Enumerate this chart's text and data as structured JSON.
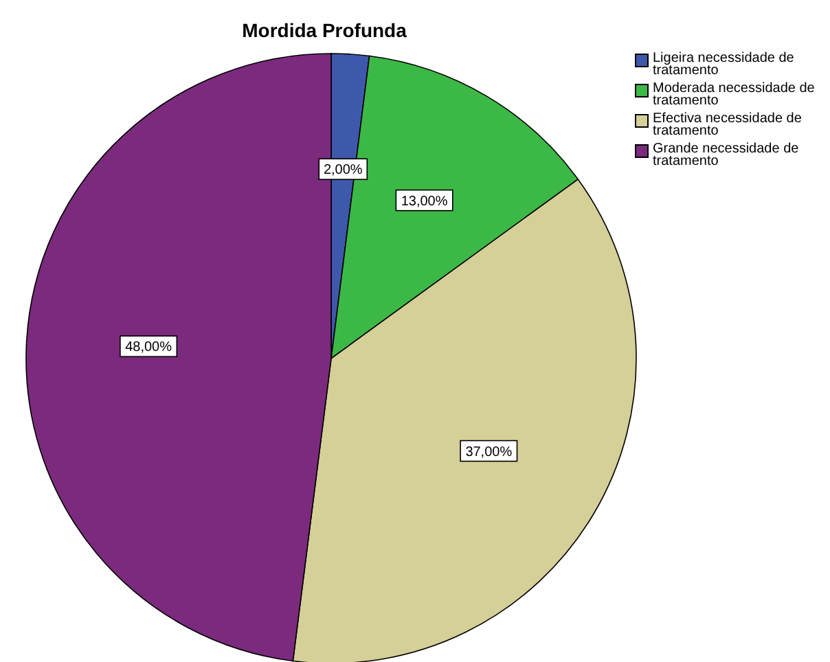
{
  "chart_data": {
    "type": "pie",
    "title": "Mordida Profunda",
    "categories": [
      "Ligeira necessidade de tratamento",
      "Moderada necessidade de tratamento",
      "Efectiva necessidade de tratamento",
      "Grande necessidade de tratamento"
    ],
    "values": [
      2,
      13,
      37,
      48
    ],
    "colors": [
      "#3e58ac",
      "#3cb846",
      "#d5cf98",
      "#7b2a7d"
    ],
    "value_labels": [
      "2,00%",
      "13,00%",
      "37,00%",
      "48,00%"
    ],
    "legend": "top right"
  }
}
